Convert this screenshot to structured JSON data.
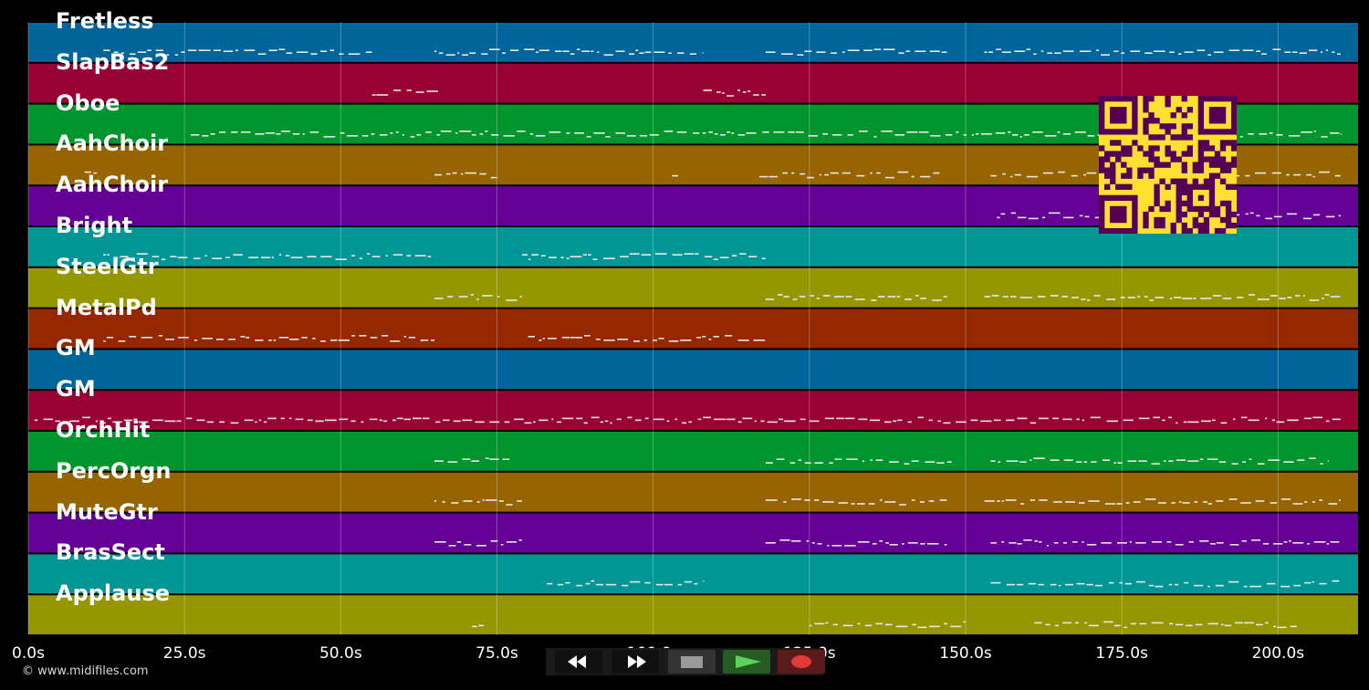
{
  "time_axis": {
    "unit": "s",
    "ticks": [
      {
        "value": 0,
        "label": "0.0s"
      },
      {
        "value": 25,
        "label": "25.0s"
      },
      {
        "value": 50,
        "label": "50.0s"
      },
      {
        "value": 75,
        "label": "75.0s"
      },
      {
        "value": 100,
        "label": "100.0s"
      },
      {
        "value": 125,
        "label": "125.0s"
      },
      {
        "value": 150,
        "label": "150.0s"
      },
      {
        "value": 175,
        "label": "175.0s"
      },
      {
        "value": 200,
        "label": "200.0s"
      }
    ],
    "max": 212.8
  },
  "tracks": [
    {
      "name": "Fretless",
      "color": "#00659a"
    },
    {
      "name": "SlapBas2",
      "color": "#990033"
    },
    {
      "name": "Oboe",
      "color": "#00962d"
    },
    {
      "name": "AahChoir",
      "color": "#966400"
    },
    {
      "name": "AahChoir",
      "color": "#640096"
    },
    {
      "name": "Bright",
      "color": "#009696"
    },
    {
      "name": "SteelGtr",
      "color": "#969600"
    },
    {
      "name": "MetalPd",
      "color": "#962800"
    },
    {
      "name": "GM",
      "color": "#00659a"
    },
    {
      "name": "GM",
      "color": "#990033"
    },
    {
      "name": "OrchHit",
      "color": "#00962d"
    },
    {
      "name": "PercOrgn",
      "color": "#966400"
    },
    {
      "name": "MuteGtr",
      "color": "#640096"
    },
    {
      "name": "BrasSect",
      "color": "#009696"
    },
    {
      "name": "Applause",
      "color": "#969600"
    }
  ],
  "note_segments": [
    [
      [
        12,
        55
      ],
      [
        65,
        108
      ],
      [
        118,
        147
      ],
      [
        153,
        210
      ]
    ],
    [
      [
        55,
        66
      ],
      [
        108,
        118
      ]
    ],
    [
      [
        26,
        210
      ]
    ],
    [
      [
        9,
        11
      ],
      [
        65,
        75
      ],
      [
        103,
        104
      ],
      [
        117,
        146
      ],
      [
        154,
        210
      ]
    ],
    [
      [
        155,
        210
      ]
    ],
    [
      [
        12,
        65
      ],
      [
        79,
        118
      ]
    ],
    [
      [
        65,
        79
      ],
      [
        118,
        147
      ],
      [
        153,
        210
      ]
    ],
    [
      [
        12,
        65
      ],
      [
        80,
        118
      ]
    ],
    [],
    [
      [
        1,
        210
      ]
    ],
    [
      [
        65,
        77
      ],
      [
        118,
        148
      ],
      [
        154,
        208
      ]
    ],
    [
      [
        65,
        79
      ],
      [
        118,
        147
      ],
      [
        153,
        210
      ]
    ],
    [
      [
        65,
        79
      ],
      [
        118,
        147
      ],
      [
        154,
        210
      ]
    ],
    [
      [
        83,
        108
      ],
      [
        154,
        210
      ]
    ],
    [
      [
        71,
        73
      ],
      [
        125,
        150
      ],
      [
        161,
        203
      ]
    ]
  ],
  "copyright": "© www.midifiles.com",
  "transport": {
    "rewind_icon": "rewind-icon",
    "forward_icon": "fast-forward-icon",
    "stop_icon": "stop-icon",
    "play_icon": "play-icon",
    "record_icon": "record-icon",
    "play_color": "#5bd35b",
    "record_color": "#e03a3a"
  },
  "qr": {
    "fg": "#550055",
    "bg": "#ffe030"
  }
}
